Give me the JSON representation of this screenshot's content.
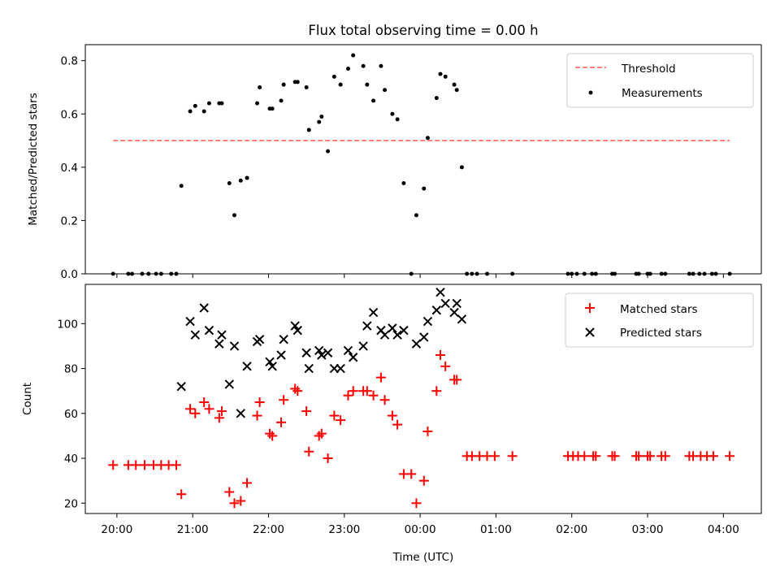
{
  "figure": {
    "title": "Flux total observing time = 0.00 h",
    "xlabel": "Time (UTC)"
  },
  "chart_data": [
    {
      "type": "scatter",
      "ylabel": "Matched/Predicted stars",
      "xlim": [
        "19:35",
        "04:30"
      ],
      "ylim": [
        0,
        0.86
      ],
      "yticks": [
        0.0,
        0.2,
        0.4,
        0.6,
        0.8
      ],
      "xticks": [
        "20:00",
        "21:00",
        "22:00",
        "23:00",
        "00:00",
        "01:00",
        "02:00",
        "03:00",
        "04:00"
      ],
      "legend_position": "upper-right",
      "series": [
        {
          "name": "Threshold",
          "kind": "line",
          "style": "dashed",
          "color": "#ff7f7f",
          "points": [
            {
              "x": "19:57",
              "y": 0.5
            },
            {
              "x": "04:05",
              "y": 0.5
            }
          ]
        },
        {
          "name": "Measurements",
          "kind": "points",
          "color": "#000000",
          "points": [
            {
              "x": "19:57",
              "y": 0.0
            },
            {
              "x": "20:09",
              "y": 0.0
            },
            {
              "x": "20:12",
              "y": 0.0
            },
            {
              "x": "20:20",
              "y": 0.0
            },
            {
              "x": "20:25",
              "y": 0.0
            },
            {
              "x": "20:31",
              "y": 0.0
            },
            {
              "x": "20:35",
              "y": 0.0
            },
            {
              "x": "20:43",
              "y": 0.0
            },
            {
              "x": "20:47",
              "y": 0.0
            },
            {
              "x": "20:51",
              "y": 0.33
            },
            {
              "x": "20:58",
              "y": 0.61
            },
            {
              "x": "21:02",
              "y": 0.63
            },
            {
              "x": "21:09",
              "y": 0.61
            },
            {
              "x": "21:13",
              "y": 0.64
            },
            {
              "x": "21:21",
              "y": 0.64
            },
            {
              "x": "21:23",
              "y": 0.64
            },
            {
              "x": "21:29",
              "y": 0.34
            },
            {
              "x": "21:33",
              "y": 0.22
            },
            {
              "x": "21:38",
              "y": 0.35
            },
            {
              "x": "21:43",
              "y": 0.36
            },
            {
              "x": "21:51",
              "y": 0.64
            },
            {
              "x": "21:53",
              "y": 0.7
            },
            {
              "x": "22:01",
              "y": 0.62
            },
            {
              "x": "22:03",
              "y": 0.62
            },
            {
              "x": "22:10",
              "y": 0.65
            },
            {
              "x": "22:12",
              "y": 0.71
            },
            {
              "x": "22:21",
              "y": 0.72
            },
            {
              "x": "22:23",
              "y": 0.72
            },
            {
              "x": "22:30",
              "y": 0.7
            },
            {
              "x": "22:32",
              "y": 0.54
            },
            {
              "x": "22:40",
              "y": 0.57
            },
            {
              "x": "22:42",
              "y": 0.59
            },
            {
              "x": "22:47",
              "y": 0.46
            },
            {
              "x": "22:52",
              "y": 0.74
            },
            {
              "x": "22:57",
              "y": 0.71
            },
            {
              "x": "23:03",
              "y": 0.77
            },
            {
              "x": "23:07",
              "y": 0.82
            },
            {
              "x": "23:15",
              "y": 0.78
            },
            {
              "x": "23:18",
              "y": 0.71
            },
            {
              "x": "23:23",
              "y": 0.65
            },
            {
              "x": "23:29",
              "y": 0.78
            },
            {
              "x": "23:32",
              "y": 0.69
            },
            {
              "x": "23:38",
              "y": 0.6
            },
            {
              "x": "23:42",
              "y": 0.58
            },
            {
              "x": "23:47",
              "y": 0.34
            },
            {
              "x": "23:53",
              "y": 0.0
            },
            {
              "x": "23:57",
              "y": 0.22
            },
            {
              "x": "00:03",
              "y": 0.32
            },
            {
              "x": "00:06",
              "y": 0.51
            },
            {
              "x": "00:13",
              "y": 0.66
            },
            {
              "x": "00:16",
              "y": 0.75
            },
            {
              "x": "00:20",
              "y": 0.74
            },
            {
              "x": "00:27",
              "y": 0.71
            },
            {
              "x": "00:29",
              "y": 0.69
            },
            {
              "x": "00:33",
              "y": 0.4
            },
            {
              "x": "00:37",
              "y": 0.0
            },
            {
              "x": "00:41",
              "y": 0.0
            },
            {
              "x": "00:45",
              "y": 0.0
            },
            {
              "x": "00:53",
              "y": 0.0
            },
            {
              "x": "01:13",
              "y": 0.0
            },
            {
              "x": "01:57",
              "y": 0.0
            },
            {
              "x": "02:00",
              "y": 0.0
            },
            {
              "x": "02:04",
              "y": 0.0
            },
            {
              "x": "02:10",
              "y": 0.0
            },
            {
              "x": "02:16",
              "y": 0.0
            },
            {
              "x": "02:19",
              "y": 0.0
            },
            {
              "x": "02:32",
              "y": 0.0
            },
            {
              "x": "02:34",
              "y": 0.0
            },
            {
              "x": "02:51",
              "y": 0.0
            },
            {
              "x": "02:53",
              "y": 0.0
            },
            {
              "x": "03:00",
              "y": 0.0
            },
            {
              "x": "03:02",
              "y": 0.0
            },
            {
              "x": "03:11",
              "y": 0.0
            },
            {
              "x": "03:14",
              "y": 0.0
            },
            {
              "x": "03:33",
              "y": 0.0
            },
            {
              "x": "03:36",
              "y": 0.0
            },
            {
              "x": "03:41",
              "y": 0.0
            },
            {
              "x": "03:45",
              "y": 0.0
            },
            {
              "x": "03:51",
              "y": 0.0
            },
            {
              "x": "03:54",
              "y": 0.0
            },
            {
              "x": "04:05",
              "y": 0.0
            }
          ]
        }
      ]
    },
    {
      "type": "scatter",
      "ylabel": "Count",
      "xlim": [
        "19:35",
        "04:30"
      ],
      "ylim": [
        15.4,
        117.5
      ],
      "yticks": [
        20,
        40,
        60,
        80,
        100
      ],
      "xticks": [
        "20:00",
        "21:00",
        "22:00",
        "23:00",
        "00:00",
        "01:00",
        "02:00",
        "03:00",
        "04:00"
      ],
      "legend_position": "upper-right",
      "series": [
        {
          "name": "Matched stars",
          "kind": "plus",
          "color": "#ff0000",
          "points": [
            {
              "x": "19:57",
              "y": 37
            },
            {
              "x": "20:09",
              "y": 37
            },
            {
              "x": "20:15",
              "y": 37
            },
            {
              "x": "20:22",
              "y": 37
            },
            {
              "x": "20:29",
              "y": 37
            },
            {
              "x": "20:35",
              "y": 37
            },
            {
              "x": "20:41",
              "y": 37
            },
            {
              "x": "20:47",
              "y": 37
            },
            {
              "x": "20:51",
              "y": 24
            },
            {
              "x": "20:58",
              "y": 62
            },
            {
              "x": "21:02",
              "y": 60
            },
            {
              "x": "21:09",
              "y": 65
            },
            {
              "x": "21:13",
              "y": 62
            },
            {
              "x": "21:21",
              "y": 58
            },
            {
              "x": "21:23",
              "y": 61
            },
            {
              "x": "21:29",
              "y": 25
            },
            {
              "x": "21:33",
              "y": 20
            },
            {
              "x": "21:38",
              "y": 21
            },
            {
              "x": "21:43",
              "y": 29
            },
            {
              "x": "21:51",
              "y": 59
            },
            {
              "x": "21:53",
              "y": 65
            },
            {
              "x": "22:01",
              "y": 51
            },
            {
              "x": "22:03",
              "y": 50
            },
            {
              "x": "22:10",
              "y": 56
            },
            {
              "x": "22:12",
              "y": 66
            },
            {
              "x": "22:21",
              "y": 71
            },
            {
              "x": "22:23",
              "y": 70
            },
            {
              "x": "22:30",
              "y": 61
            },
            {
              "x": "22:32",
              "y": 43
            },
            {
              "x": "22:40",
              "y": 50
            },
            {
              "x": "22:42",
              "y": 51
            },
            {
              "x": "22:47",
              "y": 40
            },
            {
              "x": "22:52",
              "y": 59
            },
            {
              "x": "22:57",
              "y": 57
            },
            {
              "x": "23:03",
              "y": 68
            },
            {
              "x": "23:07",
              "y": 70
            },
            {
              "x": "23:15",
              "y": 70
            },
            {
              "x": "23:18",
              "y": 70
            },
            {
              "x": "23:23",
              "y": 68
            },
            {
              "x": "23:29",
              "y": 76
            },
            {
              "x": "23:32",
              "y": 66
            },
            {
              "x": "23:38",
              "y": 59
            },
            {
              "x": "23:42",
              "y": 55
            },
            {
              "x": "23:47",
              "y": 33
            },
            {
              "x": "23:53",
              "y": 33
            },
            {
              "x": "23:57",
              "y": 20
            },
            {
              "x": "00:03",
              "y": 30
            },
            {
              "x": "00:06",
              "y": 52
            },
            {
              "x": "00:13",
              "y": 70
            },
            {
              "x": "00:16",
              "y": 86
            },
            {
              "x": "00:20",
              "y": 81
            },
            {
              "x": "00:27",
              "y": 75
            },
            {
              "x": "00:29",
              "y": 75
            },
            {
              "x": "00:37",
              "y": 41
            },
            {
              "x": "00:41",
              "y": 41
            },
            {
              "x": "00:47",
              "y": 41
            },
            {
              "x": "00:53",
              "y": 41
            },
            {
              "x": "00:59",
              "y": 41
            },
            {
              "x": "01:13",
              "y": 41
            },
            {
              "x": "01:57",
              "y": 41
            },
            {
              "x": "02:01",
              "y": 41
            },
            {
              "x": "02:05",
              "y": 41
            },
            {
              "x": "02:10",
              "y": 41
            },
            {
              "x": "02:17",
              "y": 41
            },
            {
              "x": "02:19",
              "y": 41
            },
            {
              "x": "02:32",
              "y": 41
            },
            {
              "x": "02:34",
              "y": 41
            },
            {
              "x": "02:51",
              "y": 41
            },
            {
              "x": "02:53",
              "y": 41
            },
            {
              "x": "03:00",
              "y": 41
            },
            {
              "x": "03:02",
              "y": 41
            },
            {
              "x": "03:11",
              "y": 41
            },
            {
              "x": "03:14",
              "y": 41
            },
            {
              "x": "03:33",
              "y": 41
            },
            {
              "x": "03:36",
              "y": 41
            },
            {
              "x": "03:42",
              "y": 41
            },
            {
              "x": "03:47",
              "y": 41
            },
            {
              "x": "03:52",
              "y": 41
            },
            {
              "x": "04:05",
              "y": 41
            }
          ]
        },
        {
          "name": "Predicted stars",
          "kind": "cross",
          "color": "#000000",
          "points": [
            {
              "x": "20:51",
              "y": 72
            },
            {
              "x": "20:58",
              "y": 101
            },
            {
              "x": "21:02",
              "y": 95
            },
            {
              "x": "21:09",
              "y": 107
            },
            {
              "x": "21:13",
              "y": 97
            },
            {
              "x": "21:21",
              "y": 91
            },
            {
              "x": "21:23",
              "y": 95
            },
            {
              "x": "21:29",
              "y": 73
            },
            {
              "x": "21:33",
              "y": 90
            },
            {
              "x": "21:38",
              "y": 60
            },
            {
              "x": "21:43",
              "y": 81
            },
            {
              "x": "21:51",
              "y": 92
            },
            {
              "x": "21:53",
              "y": 93
            },
            {
              "x": "22:01",
              "y": 83
            },
            {
              "x": "22:03",
              "y": 81
            },
            {
              "x": "22:10",
              "y": 86
            },
            {
              "x": "22:12",
              "y": 93
            },
            {
              "x": "22:21",
              "y": 99
            },
            {
              "x": "22:23",
              "y": 97
            },
            {
              "x": "22:30",
              "y": 87
            },
            {
              "x": "22:32",
              "y": 80
            },
            {
              "x": "22:40",
              "y": 88
            },
            {
              "x": "22:42",
              "y": 86
            },
            {
              "x": "22:47",
              "y": 87
            },
            {
              "x": "22:52",
              "y": 80
            },
            {
              "x": "22:57",
              "y": 80
            },
            {
              "x": "23:03",
              "y": 88
            },
            {
              "x": "23:07",
              "y": 85
            },
            {
              "x": "23:15",
              "y": 90
            },
            {
              "x": "23:18",
              "y": 99
            },
            {
              "x": "23:23",
              "y": 105
            },
            {
              "x": "23:29",
              "y": 97
            },
            {
              "x": "23:32",
              "y": 95
            },
            {
              "x": "23:38",
              "y": 98
            },
            {
              "x": "23:42",
              "y": 95
            },
            {
              "x": "23:47",
              "y": 97
            },
            {
              "x": "23:57",
              "y": 91
            },
            {
              "x": "00:03",
              "y": 94
            },
            {
              "x": "00:06",
              "y": 101
            },
            {
              "x": "00:13",
              "y": 106
            },
            {
              "x": "00:16",
              "y": 114
            },
            {
              "x": "00:20",
              "y": 109
            },
            {
              "x": "00:27",
              "y": 105
            },
            {
              "x": "00:29",
              "y": 109
            },
            {
              "x": "00:33",
              "y": 102
            }
          ]
        }
      ]
    }
  ]
}
